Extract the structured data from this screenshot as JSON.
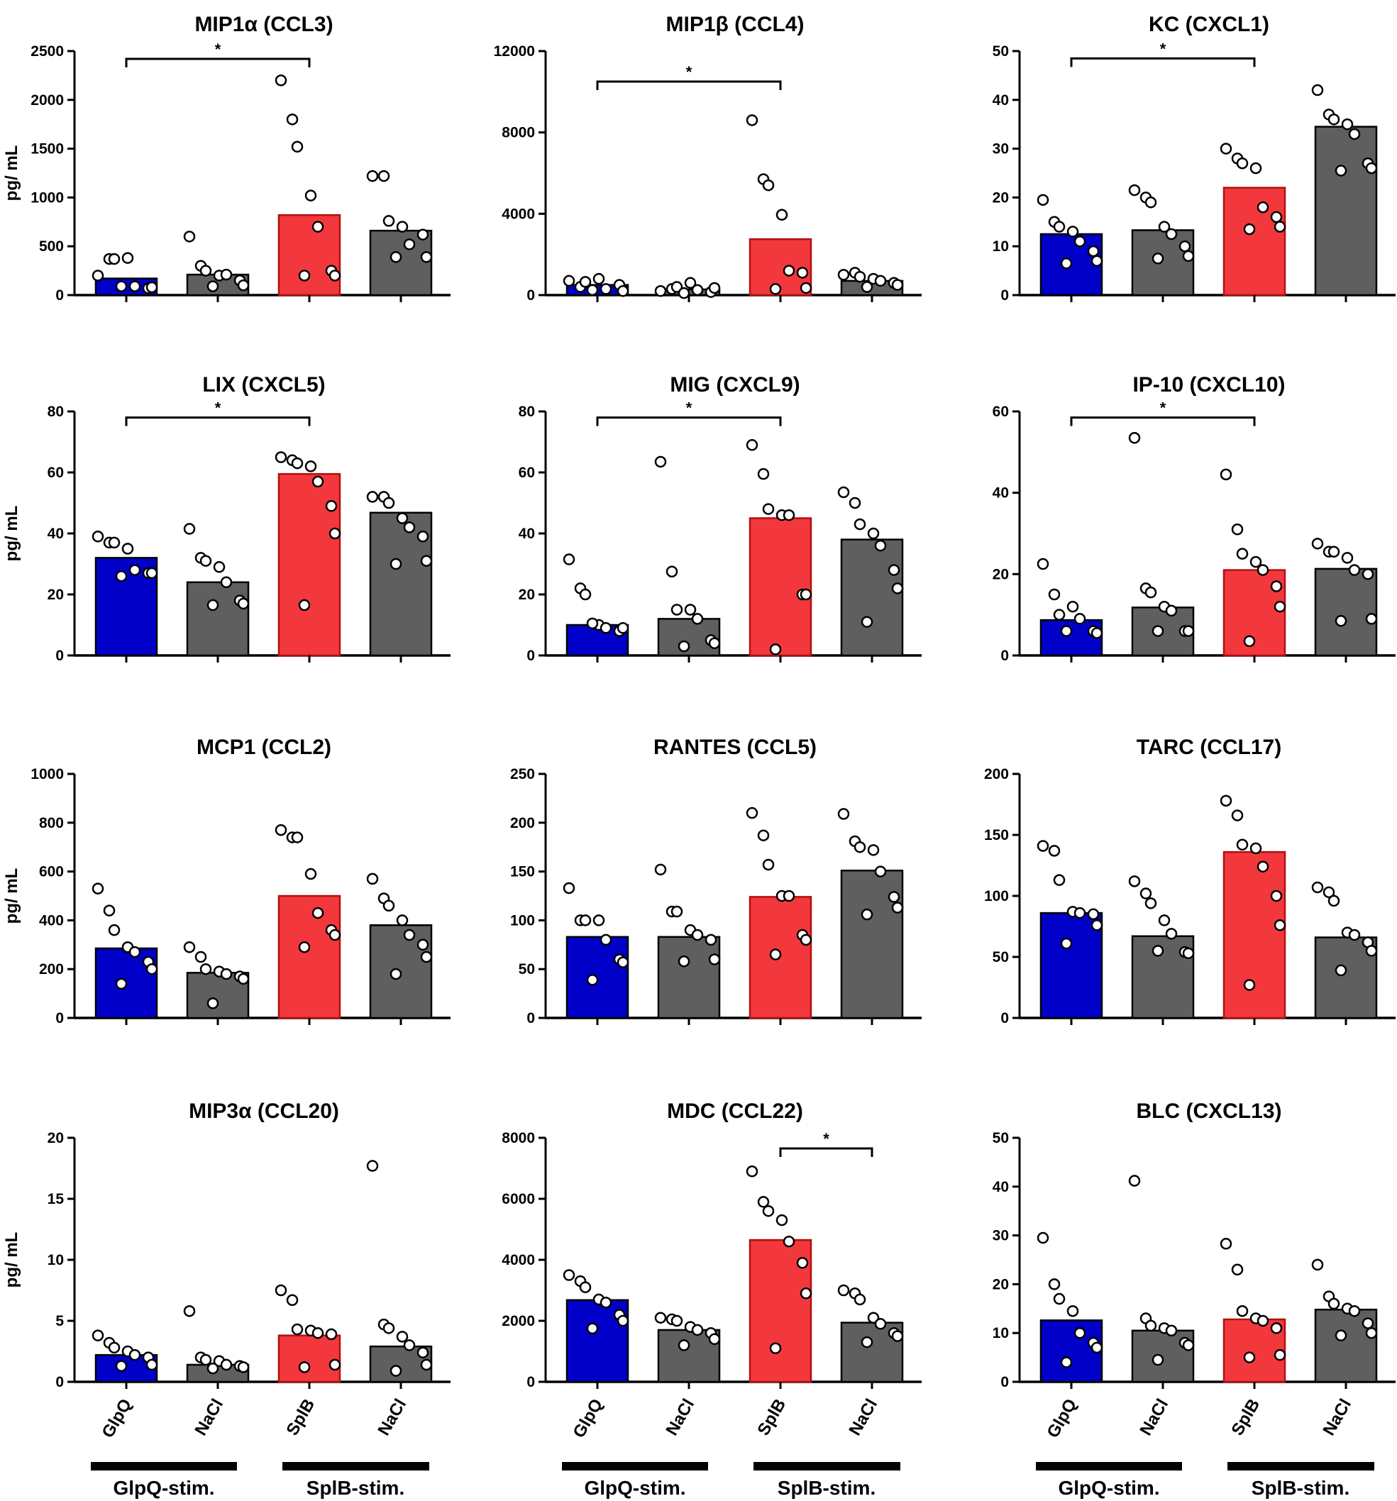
{
  "colors": {
    "glpq": "#0000c8",
    "splb": "#f2383c",
    "nacl": "#5f5f5f",
    "glpq_edge": "#000000",
    "splb_edge": "#b01010",
    "nacl_edge": "#000000",
    "point_fill": "#ffffff",
    "point_edge": "#000000"
  },
  "chart_data": [
    {
      "type": "bar",
      "title": "MIP1α (CCL3)",
      "ylabel": "pg/ mL",
      "ylim": [
        0,
        2500
      ],
      "yticks": [
        0,
        500,
        1000,
        1500,
        2000,
        2500
      ],
      "categories": [
        "GlpQ",
        "NaCl",
        "SplB",
        "NaCl"
      ],
      "values": [
        170,
        210,
        820,
        660
      ],
      "points": [
        [
          200,
          370,
          370,
          380,
          90,
          70,
          80,
          90
        ],
        [
          600,
          300,
          250,
          200,
          210,
          150,
          100,
          90
        ],
        [
          2200,
          1800,
          1520,
          1020,
          700,
          250,
          200,
          200
        ],
        [
          1220,
          1220,
          760,
          700,
          520,
          620,
          390,
          390
        ]
      ],
      "significance": [
        {
          "from": 0,
          "to": 2,
          "label": "*",
          "y": 2420
        }
      ]
    },
    {
      "type": "bar",
      "title": "MIP1β (CCL4)",
      "ylabel": "",
      "ylim": [
        0,
        12000
      ],
      "yticks": [
        0,
        4000,
        8000,
        12000
      ],
      "categories": [
        "GlpQ",
        "NaCl",
        "SplB",
        "NaCl"
      ],
      "values": [
        500,
        280,
        2750,
        700
      ],
      "points": [
        [
          700,
          400,
          650,
          800,
          300,
          500,
          200,
          250
        ],
        [
          200,
          300,
          400,
          600,
          250,
          150,
          350,
          100
        ],
        [
          8600,
          5700,
          5400,
          3950,
          1200,
          1100,
          350,
          300
        ],
        [
          1000,
          1100,
          900,
          800,
          700,
          600,
          500,
          400
        ]
      ],
      "significance": [
        {
          "from": 0,
          "to": 2,
          "label": "*",
          "y": 10500
        }
      ]
    },
    {
      "type": "bar",
      "title": "KC (CXCL1)",
      "ylabel": "",
      "ylim": [
        0,
        50
      ],
      "yticks": [
        0,
        10,
        20,
        30,
        40,
        50
      ],
      "categories": [
        "GlpQ",
        "NaCl",
        "SplB",
        "NaCl"
      ],
      "values": [
        12.5,
        13.3,
        22.0,
        34.5
      ],
      "points": [
        [
          19.5,
          15,
          14,
          13,
          11,
          9,
          7,
          6.5
        ],
        [
          21.5,
          20,
          19,
          14,
          12.5,
          10,
          8,
          7.5
        ],
        [
          30,
          28,
          27,
          26,
          18,
          16,
          14,
          13.5
        ],
        [
          42,
          37,
          36,
          35,
          33,
          27,
          26,
          25.5
        ]
      ],
      "significance": [
        {
          "from": 0,
          "to": 2,
          "label": "*",
          "y": 48.5
        }
      ]
    },
    {
      "type": "bar",
      "title": "LIX (CXCL5)",
      "ylabel": "pg/ mL",
      "ylim": [
        0,
        80
      ],
      "yticks": [
        0,
        20,
        40,
        60,
        80
      ],
      "categories": [
        "GlpQ",
        "NaCl",
        "SplB",
        "NaCl"
      ],
      "values": [
        32,
        24,
        59.5,
        46.8
      ],
      "points": [
        [
          39,
          37,
          37,
          35,
          28,
          27,
          27,
          26
        ],
        [
          41.5,
          32,
          31,
          29,
          24,
          18,
          17,
          16.5
        ],
        [
          65,
          64,
          63,
          62,
          57,
          49,
          40,
          16.5
        ],
        [
          52,
          52,
          50,
          45,
          42,
          39,
          31,
          30
        ]
      ],
      "significance": [
        {
          "from": 0,
          "to": 2,
          "label": "*",
          "y": 78
        }
      ]
    },
    {
      "type": "bar",
      "title": "MIG (CXCL9)",
      "ylabel": "",
      "ylim": [
        0,
        80
      ],
      "yticks": [
        0,
        20,
        40,
        60,
        80
      ],
      "categories": [
        "GlpQ",
        "NaCl",
        "SplB",
        "NaCl"
      ],
      "values": [
        10,
        12,
        45,
        38
      ],
      "points": [
        [
          31.5,
          22,
          20,
          10,
          9,
          8,
          9,
          10.5
        ],
        [
          63.5,
          27.5,
          15,
          15,
          12,
          5,
          4,
          3
        ],
        [
          69,
          59.5,
          48,
          46,
          46,
          20,
          20,
          2
        ],
        [
          53.5,
          50,
          43,
          40,
          36,
          28,
          22,
          11
        ]
      ],
      "significance": [
        {
          "from": 0,
          "to": 2,
          "label": "*",
          "y": 78
        }
      ]
    },
    {
      "type": "bar",
      "title": "IP-10 (CXCL10)",
      "ylabel": "",
      "ylim": [
        0,
        60
      ],
      "yticks": [
        0,
        20,
        40,
        60
      ],
      "categories": [
        "GlpQ",
        "NaCl",
        "SplB",
        "NaCl"
      ],
      "values": [
        8.7,
        11.8,
        21,
        21.3
      ],
      "points": [
        [
          22.5,
          15,
          10,
          12,
          9,
          6,
          5.5,
          6
        ],
        [
          53.5,
          16.5,
          15.5,
          12,
          11,
          6,
          6,
          6
        ],
        [
          44.5,
          31,
          25,
          23,
          21,
          17,
          12,
          3.5
        ],
        [
          27.5,
          25.5,
          25.5,
          24,
          21,
          20,
          9,
          8.5
        ]
      ],
      "significance": [
        {
          "from": 0,
          "to": 2,
          "label": "*",
          "y": 58.5
        }
      ]
    },
    {
      "type": "bar",
      "title": "MCP1 (CCL2)",
      "ylabel": "pg/ mL",
      "ylim": [
        0,
        1000
      ],
      "yticks": [
        0,
        200,
        400,
        600,
        800,
        1000
      ],
      "categories": [
        "GlpQ",
        "NaCl",
        "SplB",
        "NaCl"
      ],
      "values": [
        285,
        185,
        500,
        380
      ],
      "points": [
        [
          530,
          440,
          360,
          290,
          270,
          230,
          200,
          140
        ],
        [
          290,
          250,
          200,
          190,
          180,
          170,
          160,
          60
        ],
        [
          770,
          740,
          740,
          590,
          430,
          360,
          340,
          290
        ],
        [
          570,
          490,
          460,
          400,
          340,
          300,
          250,
          180
        ]
      ],
      "significance": []
    },
    {
      "type": "bar",
      "title": "RANTES (CCL5)",
      "ylabel": "",
      "ylim": [
        0,
        250
      ],
      "yticks": [
        0,
        50,
        100,
        150,
        200,
        250
      ],
      "categories": [
        "GlpQ",
        "NaCl",
        "SplB",
        "NaCl"
      ],
      "values": [
        83,
        83,
        124,
        151
      ],
      "points": [
        [
          133,
          100,
          100,
          100,
          80,
          60,
          57,
          39
        ],
        [
          152,
          109,
          109,
          90,
          85,
          80,
          60,
          58
        ],
        [
          210,
          187,
          157,
          125,
          125,
          85,
          80,
          65
        ],
        [
          209,
          181,
          175,
          172,
          150,
          124,
          113,
          106
        ]
      ],
      "significance": []
    },
    {
      "type": "bar",
      "title": "TARC (CCL17)",
      "ylabel": "",
      "ylim": [
        0,
        200
      ],
      "yticks": [
        0,
        50,
        100,
        150,
        200
      ],
      "categories": [
        "GlpQ",
        "NaCl",
        "SplB",
        "NaCl"
      ],
      "values": [
        86,
        67,
        136,
        66
      ],
      "points": [
        [
          141,
          137,
          113,
          87,
          86,
          85,
          76,
          61
        ],
        [
          112,
          102,
          94,
          80,
          69,
          54,
          53,
          55
        ],
        [
          178,
          166,
          142,
          139,
          124,
          100,
          76,
          27
        ],
        [
          107,
          103,
          96,
          70,
          68,
          62,
          55,
          39
        ]
      ],
      "significance": []
    },
    {
      "type": "bar",
      "title": "MIP3α (CCL20)",
      "ylabel": "pg/ mL",
      "ylim": [
        0,
        20
      ],
      "yticks": [
        0,
        5,
        10,
        15,
        20
      ],
      "categories": [
        "GlpQ",
        "NaCl",
        "SplB",
        "NaCl"
      ],
      "values": [
        2.2,
        1.4,
        3.8,
        2.9
      ],
      "points": [
        [
          3.8,
          3.2,
          2.8,
          2.5,
          2.2,
          2.0,
          1.4,
          1.3
        ],
        [
          5.8,
          2.0,
          1.8,
          1.7,
          1.4,
          1.3,
          1.2,
          1.1
        ],
        [
          7.5,
          6.7,
          4.3,
          4.2,
          4.0,
          3.9,
          1.4,
          1.2
        ],
        [
          17.7,
          4.7,
          4.4,
          3.7,
          3.0,
          2.4,
          1.4,
          0.9
        ]
      ],
      "significance": []
    },
    {
      "type": "bar",
      "title": "MDC (CCL22)",
      "ylabel": "",
      "ylim": [
        0,
        8000
      ],
      "yticks": [
        0,
        2000,
        4000,
        6000,
        8000
      ],
      "categories": [
        "GlpQ",
        "NaCl",
        "SplB",
        "NaCl"
      ],
      "values": [
        2680,
        1700,
        4650,
        1940
      ],
      "points": [
        [
          3500,
          3300,
          3100,
          2700,
          2600,
          2200,
          2000,
          1750
        ],
        [
          2100,
          2050,
          2000,
          1800,
          1700,
          1600,
          1400,
          1200
        ],
        [
          6900,
          5900,
          5600,
          5300,
          4600,
          3900,
          2900,
          1100
        ],
        [
          3000,
          2900,
          2700,
          2100,
          1900,
          1600,
          1500,
          1300
        ]
      ],
      "significance": [
        {
          "from": 2,
          "to": 3,
          "label": "*",
          "y": 7650
        }
      ]
    },
    {
      "type": "bar",
      "title": "BLC (CXCL13)",
      "ylabel": "",
      "ylim": [
        0,
        50
      ],
      "yticks": [
        0,
        10,
        20,
        30,
        40,
        50
      ],
      "categories": [
        "GlpQ",
        "NaCl",
        "SplB",
        "NaCl"
      ],
      "values": [
        12.6,
        10.5,
        12.8,
        14.8
      ],
      "points": [
        [
          29.5,
          20,
          17,
          14.5,
          10,
          8,
          7,
          4
        ],
        [
          41.2,
          13,
          11.5,
          11,
          10.5,
          8,
          7.5,
          4.5
        ],
        [
          28.3,
          23,
          14.5,
          13,
          12.5,
          11,
          5.5,
          5
        ],
        [
          24,
          17.5,
          16,
          15,
          14.5,
          12,
          10,
          9.5
        ]
      ],
      "significance": []
    }
  ],
  "xaxis_groups": [
    {
      "label": "GlpQ-stim."
    },
    {
      "label": "SplB-stim."
    }
  ]
}
